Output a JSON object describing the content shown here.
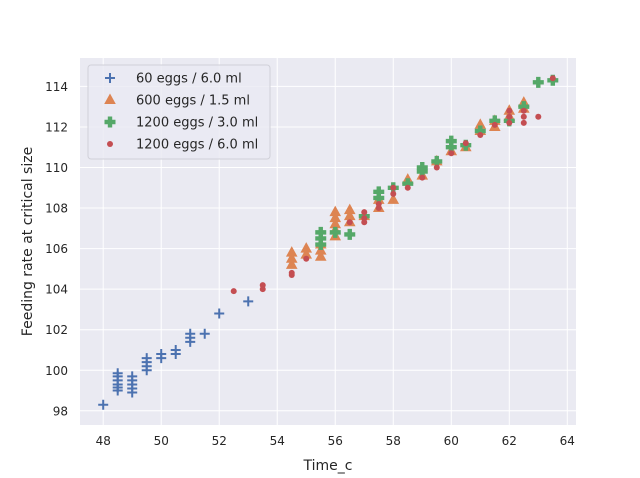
{
  "chart_data": {
    "type": "scatter",
    "title": "",
    "xlabel": "Time_c",
    "ylabel": "Feeding rate at critical size",
    "xlim": [
      47.2,
      64.3
    ],
    "ylim": [
      97.3,
      115.4
    ],
    "xticks": [
      48,
      50,
      52,
      54,
      56,
      58,
      60,
      62,
      64
    ],
    "yticks": [
      98,
      100,
      102,
      104,
      106,
      108,
      110,
      112,
      114
    ],
    "grid": true,
    "legend_position": "top-left",
    "series": [
      {
        "name": "60 eggs / 6.0 ml",
        "marker": "plus",
        "color": "#4c72b0",
        "points": [
          [
            48.0,
            98.3
          ],
          [
            48.5,
            99.0
          ],
          [
            48.5,
            99.15
          ],
          [
            48.5,
            99.3
          ],
          [
            48.5,
            99.5
          ],
          [
            48.5,
            99.7
          ],
          [
            48.5,
            99.85
          ],
          [
            49.0,
            98.9
          ],
          [
            49.0,
            99.1
          ],
          [
            49.0,
            99.3
          ],
          [
            49.0,
            99.5
          ],
          [
            49.0,
            99.7
          ],
          [
            49.5,
            100.0
          ],
          [
            49.5,
            100.2
          ],
          [
            49.5,
            100.4
          ],
          [
            49.5,
            100.6
          ],
          [
            50.0,
            100.6
          ],
          [
            50.0,
            100.8
          ],
          [
            50.5,
            100.8
          ],
          [
            50.5,
            101.0
          ],
          [
            51.0,
            101.4
          ],
          [
            51.0,
            101.6
          ],
          [
            51.0,
            101.8
          ],
          [
            51.5,
            101.8
          ],
          [
            52.0,
            102.8
          ],
          [
            53.0,
            103.4
          ]
        ]
      },
      {
        "name": "600 eggs / 1.5 ml",
        "marker": "triangle",
        "color": "#dd8452",
        "points": [
          [
            54.5,
            105.2
          ],
          [
            54.5,
            105.5
          ],
          [
            54.5,
            105.8
          ],
          [
            55.0,
            105.7
          ],
          [
            55.0,
            106.0
          ],
          [
            55.5,
            105.6
          ],
          [
            55.5,
            105.9
          ],
          [
            55.5,
            106.2
          ],
          [
            56.0,
            106.6
          ],
          [
            56.0,
            106.9
          ],
          [
            56.0,
            107.2
          ],
          [
            56.0,
            107.5
          ],
          [
            56.0,
            107.8
          ],
          [
            56.5,
            107.3
          ],
          [
            56.5,
            107.6
          ],
          [
            56.5,
            107.9
          ],
          [
            57.0,
            107.6
          ],
          [
            57.5,
            108.0
          ],
          [
            57.5,
            108.4
          ],
          [
            58.0,
            108.4
          ],
          [
            58.5,
            109.4
          ],
          [
            59.0,
            109.6
          ],
          [
            59.5,
            110.3
          ],
          [
            60.0,
            110.8
          ],
          [
            60.5,
            111.0
          ],
          [
            61.0,
            111.8
          ],
          [
            61.0,
            112.1
          ],
          [
            61.5,
            112.0
          ],
          [
            61.5,
            112.3
          ],
          [
            62.0,
            112.5
          ],
          [
            62.0,
            112.8
          ],
          [
            62.5,
            112.9
          ],
          [
            62.5,
            113.2
          ]
        ]
      },
      {
        "name": "1200 eggs / 3.0 ml",
        "marker": "plus-bold",
        "color": "#55a868",
        "points": [
          [
            55.5,
            106.2
          ],
          [
            55.5,
            106.5
          ],
          [
            55.5,
            106.8
          ],
          [
            56.0,
            106.8
          ],
          [
            56.5,
            106.7
          ],
          [
            57.0,
            107.6
          ],
          [
            57.5,
            108.5
          ],
          [
            57.5,
            108.8
          ],
          [
            58.0,
            109.0
          ],
          [
            58.5,
            109.2
          ],
          [
            59.0,
            109.8
          ],
          [
            59.0,
            110.0
          ],
          [
            59.5,
            110.3
          ],
          [
            60.0,
            111.0
          ],
          [
            60.0,
            111.3
          ],
          [
            60.5,
            111.1
          ],
          [
            61.0,
            111.8
          ],
          [
            61.5,
            112.3
          ],
          [
            62.0,
            112.3
          ],
          [
            62.5,
            113.0
          ],
          [
            63.0,
            114.2
          ],
          [
            63.5,
            114.3
          ]
        ]
      },
      {
        "name": "1200 eggs / 6.0 ml",
        "marker": "dot",
        "color": "#c44e52",
        "points": [
          [
            52.5,
            103.9
          ],
          [
            53.5,
            104.0
          ],
          [
            53.5,
            104.2
          ],
          [
            54.5,
            104.7
          ],
          [
            54.5,
            104.8
          ],
          [
            55.0,
            105.5
          ],
          [
            56.5,
            107.3
          ],
          [
            57.0,
            107.3
          ],
          [
            57.0,
            107.5
          ],
          [
            57.0,
            107.8
          ],
          [
            57.5,
            108.0
          ],
          [
            57.5,
            108.2
          ],
          [
            58.0,
            108.7
          ],
          [
            58.0,
            109.0
          ],
          [
            58.5,
            109.0
          ],
          [
            59.0,
            109.5
          ],
          [
            59.5,
            110.0
          ],
          [
            60.0,
            110.7
          ],
          [
            60.5,
            111.2
          ],
          [
            61.0,
            111.6
          ],
          [
            61.5,
            112.1
          ],
          [
            62.0,
            112.2
          ],
          [
            62.0,
            112.5
          ],
          [
            62.0,
            112.8
          ],
          [
            62.5,
            112.2
          ],
          [
            62.5,
            112.5
          ],
          [
            62.5,
            112.8
          ],
          [
            63.0,
            112.5
          ],
          [
            63.5,
            114.4
          ]
        ]
      }
    ]
  }
}
